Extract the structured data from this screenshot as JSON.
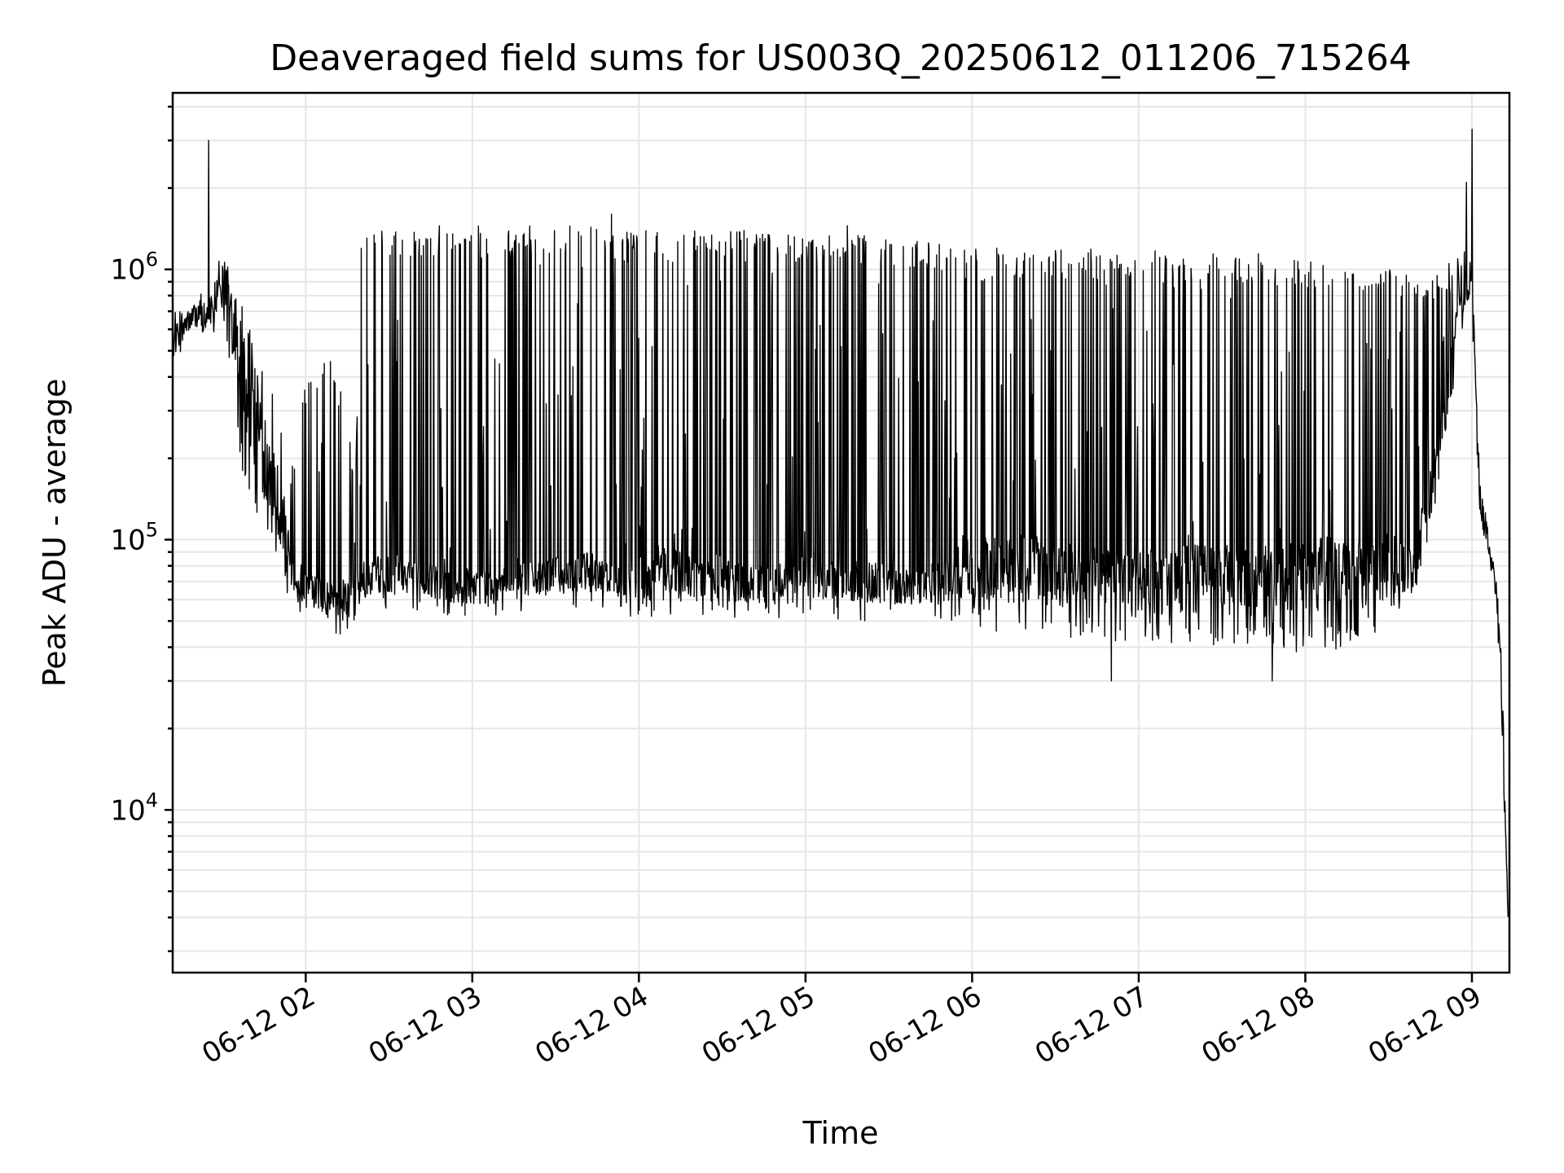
{
  "chart_data": {
    "type": "line",
    "title": "Deaveraged field sums for US003Q_20250612_011206_715264",
    "xlabel": "Time",
    "ylabel": "Peak ADU - average",
    "yscale": "log",
    "ylim": [
      2500,
      4500000
    ],
    "xlim": [
      "2025-06-12T01:12:06",
      "2025-06-12T09:13:30"
    ],
    "grid": true,
    "color": "#000000",
    "x_ticks": [
      {
        "label": "06-12 02",
        "value": "2025-06-12T02:00:00"
      },
      {
        "label": "06-12 03",
        "value": "2025-06-12T03:00:00"
      },
      {
        "label": "06-12 04",
        "value": "2025-06-12T04:00:00"
      },
      {
        "label": "06-12 05",
        "value": "2025-06-12T05:00:00"
      },
      {
        "label": "06-12 06",
        "value": "2025-06-12T06:00:00"
      },
      {
        "label": "06-12 07",
        "value": "2025-06-12T07:00:00"
      },
      {
        "label": "06-12 08",
        "value": "2025-06-12T08:00:00"
      },
      {
        "label": "06-12 09",
        "value": "2025-06-12T09:00:00"
      }
    ],
    "y_ticks": [
      {
        "value": 10000,
        "base": "10",
        "exp": "4"
      },
      {
        "value": 100000,
        "base": "10",
        "exp": "5"
      },
      {
        "value": 1000000,
        "base": "10",
        "exp": "6"
      }
    ],
    "series": [
      {
        "x": [
          "2025-06-12T01:12:06",
          "2025-06-12T01:15:00",
          "2025-06-12T01:20:00",
          "2025-06-12T01:25:00",
          "2025-06-12T01:28:00",
          "2025-06-12T01:29:00",
          "2025-06-12T01:30:00",
          "2025-06-12T01:33:00",
          "2025-06-12T01:38:00",
          "2025-06-12T01:43:00",
          "2025-06-12T01:48:00",
          "2025-06-12T01:52:00",
          "2025-06-12T01:55:00",
          "2025-06-12T02:00:00",
          "2025-06-12T02:10:00",
          "2025-06-12T02:18:00",
          "2025-06-12T02:20:00",
          "2025-06-12T02:30:00",
          "2025-06-12T02:40:00",
          "2025-06-12T02:50:00",
          "2025-06-12T03:00:00",
          "2025-06-12T03:20:00",
          "2025-06-12T03:40:00",
          "2025-06-12T04:00:00",
          "2025-06-12T04:20:00",
          "2025-06-12T04:40:00",
          "2025-06-12T05:00:00",
          "2025-06-12T05:20:00",
          "2025-06-12T05:40:00",
          "2025-06-12T06:00:00",
          "2025-06-12T06:20:00",
          "2025-06-12T06:40:00",
          "2025-06-12T07:00:00",
          "2025-06-12T07:20:00",
          "2025-06-12T07:40:00",
          "2025-06-12T08:00:00",
          "2025-06-12T08:20:00",
          "2025-06-12T08:40:00",
          "2025-06-12T08:50:00",
          "2025-06-12T08:55:00",
          "2025-06-12T08:59:00",
          "2025-06-12T09:00:00",
          "2025-06-12T09:03:00",
          "2025-06-12T09:06:00",
          "2025-06-12T09:09:00",
          "2025-06-12T09:11:00",
          "2025-06-12T09:13:00"
        ],
        "baseline": [
          550000,
          620000,
          700000,
          700000,
          900000,
          1100000,
          1000000,
          800000,
          550000,
          300000,
          200000,
          120000,
          80000,
          70000,
          62000,
          65000,
          75000,
          80000,
          78000,
          75000,
          70000,
          75000,
          80000,
          85000,
          78000,
          72000,
          78000,
          75000,
          70000,
          85000,
          88000,
          80000,
          75000,
          80000,
          78000,
          80000,
          85000,
          90000,
          300000,
          700000,
          950000,
          900000,
          150000,
          100000,
          65000,
          25000,
          4000
        ],
        "peak": [
          750000,
          720000,
          800000,
          850000,
          950000,
          1150000,
          1100000,
          950000,
          700000,
          500000,
          400000,
          300000,
          200000,
          400000,
          500000,
          190000,
          1450000,
          1500000,
          1450000,
          1450000,
          1450000,
          1450000,
          1450000,
          1400000,
          1400000,
          1400000,
          1350000,
          1350000,
          1300000,
          1200000,
          1200000,
          1200000,
          1200000,
          1150000,
          1150000,
          1100000,
          1000000,
          1000000,
          1000000,
          1200000,
          1300000,
          1050000,
          150000,
          110000,
          70000,
          28000,
          4500
        ],
        "trough": [
          400000,
          500000,
          550000,
          500000,
          600000,
          700000,
          650000,
          400000,
          150000,
          100000,
          90000,
          70000,
          55000,
          50000,
          45000,
          40000,
          55000,
          55000,
          55000,
          50000,
          50000,
          55000,
          55000,
          50000,
          50000,
          50000,
          52000,
          50000,
          50000,
          45000,
          45000,
          42000,
          40000,
          40000,
          40000,
          38000,
          40000,
          55000,
          200000,
          400000,
          700000,
          600000,
          100000,
          80000,
          50000,
          12000,
          3500
        ],
        "spikes": [
          {
            "x": "2025-06-12T01:25:00",
            "y": 3000000
          },
          {
            "x": "2025-06-12T02:48:00",
            "y": 1450000
          },
          {
            "x": "2025-06-12T03:50:00",
            "y": 1600000
          },
          {
            "x": "2025-06-12T05:15:00",
            "y": 1450000
          },
          {
            "x": "2025-06-12T06:50:00",
            "y": 30000
          },
          {
            "x": "2025-06-12T07:48:00",
            "y": 30000
          },
          {
            "x": "2025-06-12T08:58:00",
            "y": 2100000
          },
          {
            "x": "2025-06-12T09:00:00",
            "y": 3300000
          }
        ]
      }
    ]
  }
}
